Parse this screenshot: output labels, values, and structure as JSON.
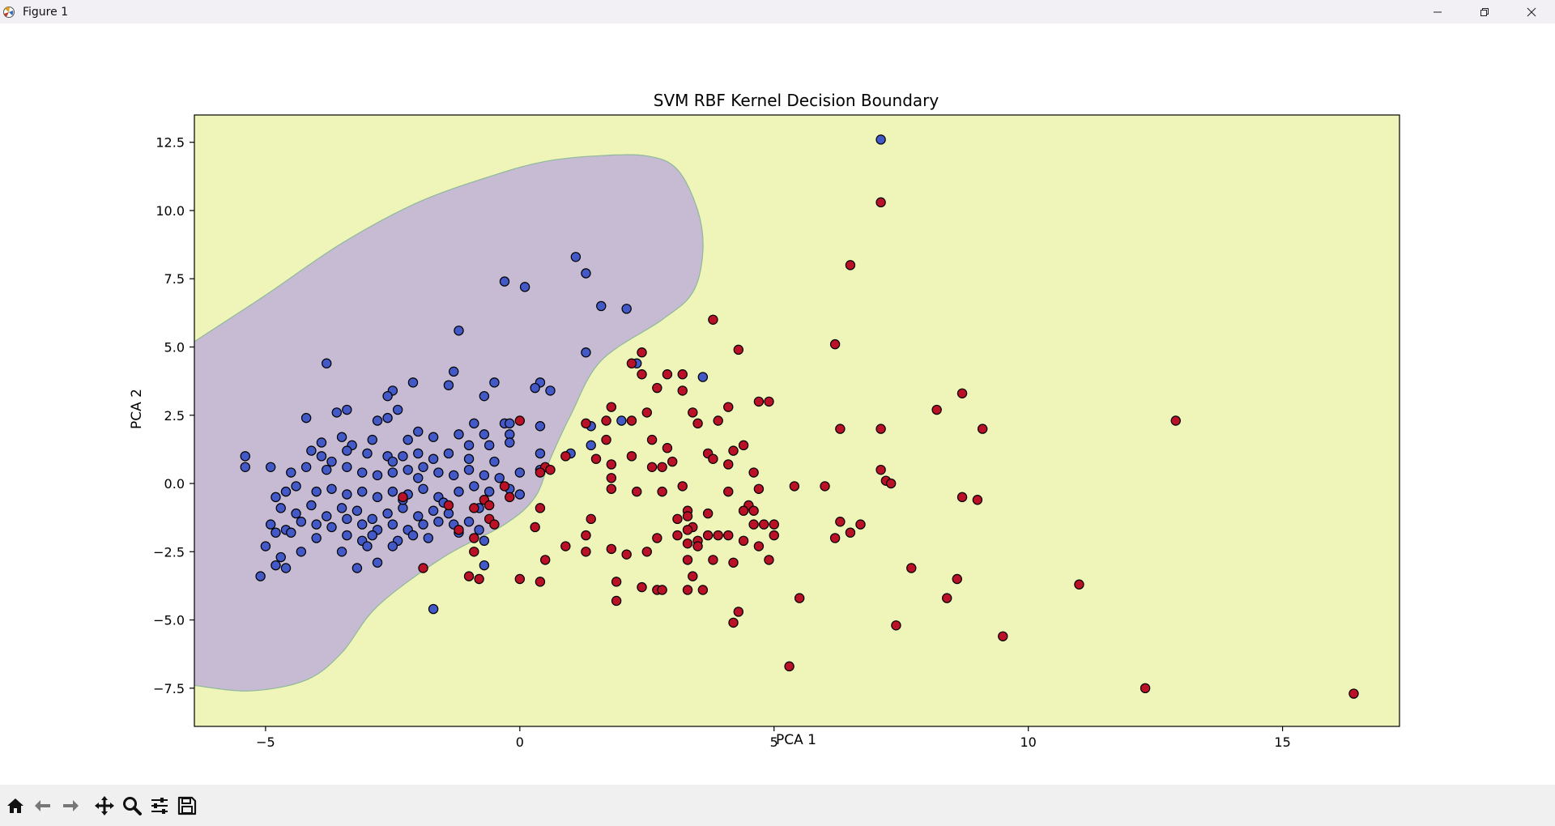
{
  "window": {
    "title": "Figure 1",
    "controls": [
      "minimize-icon",
      "restore-icon",
      "close-icon"
    ]
  },
  "toolbar": {
    "tools": [
      "home-icon",
      "back-arrow-icon",
      "forward-arrow-icon",
      "pan-move-icon",
      "zoom-magnifier-icon",
      "configure-subplots-icon",
      "save-floppy-icon"
    ]
  },
  "colors": {
    "region_class0": "#c6bbd3",
    "region_class1": "#eff5b8",
    "boundary": "#8fb89a",
    "class0": "#4459c8",
    "class1": "#bb1127"
  },
  "chart_data": {
    "type": "scatter",
    "title": "SVM RBF Kernel Decision Boundary",
    "xlabel": "PCA 1",
    "ylabel": "PCA 2",
    "xlim": [
      -6.4,
      17.3
    ],
    "ylim": [
      -8.9,
      13.5
    ],
    "xticks": [
      -5,
      0,
      5,
      10,
      15
    ],
    "yticks": [
      -7.5,
      -5.0,
      -2.5,
      0.0,
      2.5,
      5.0,
      7.5,
      10.0,
      12.5
    ],
    "grid": false,
    "legend": "none",
    "decision_region_class0_boundary": [
      [
        -6.4,
        5.2
      ],
      [
        -5.0,
        6.9
      ],
      [
        -3.5,
        8.8
      ],
      [
        -2.0,
        10.3
      ],
      [
        -0.5,
        11.3
      ],
      [
        0.5,
        11.8
      ],
      [
        1.5,
        12.0
      ],
      [
        2.5,
        12.0
      ],
      [
        3.1,
        11.5
      ],
      [
        3.5,
        10.0
      ],
      [
        3.6,
        8.5
      ],
      [
        3.4,
        7.0
      ],
      [
        2.8,
        6.0
      ],
      [
        1.6,
        4.5
      ],
      [
        1.0,
        2.5
      ],
      [
        0.6,
        0.9
      ],
      [
        0.3,
        -0.5
      ],
      [
        -0.3,
        -1.5
      ],
      [
        -1.5,
        -2.7
      ],
      [
        -2.8,
        -4.5
      ],
      [
        -3.5,
        -6.2
      ],
      [
        -4.2,
        -7.2
      ],
      [
        -5.3,
        -7.6
      ],
      [
        -6.4,
        -7.4
      ]
    ],
    "series": [
      {
        "class": 0,
        "points": [
          [
            7.1,
            12.6
          ],
          [
            1.1,
            8.3
          ],
          [
            1.3,
            7.7
          ],
          [
            -0.3,
            7.4
          ],
          [
            0.1,
            7.2
          ],
          [
            1.6,
            6.5
          ],
          [
            2.1,
            6.4
          ],
          [
            -1.2,
            5.6
          ],
          [
            1.3,
            4.8
          ],
          [
            -3.8,
            4.4
          ],
          [
            2.3,
            4.4
          ],
          [
            3.6,
            3.9
          ],
          [
            -1.3,
            4.1
          ],
          [
            -2.1,
            3.7
          ],
          [
            -1.4,
            3.6
          ],
          [
            -0.5,
            3.7
          ],
          [
            0.4,
            3.7
          ],
          [
            0.3,
            3.5
          ],
          [
            0.6,
            3.4
          ],
          [
            -2.5,
            3.4
          ],
          [
            -2.6,
            3.2
          ],
          [
            -0.7,
            3.2
          ],
          [
            -3.4,
            2.7
          ],
          [
            -3.6,
            2.6
          ],
          [
            -2.4,
            2.7
          ],
          [
            -4.2,
            2.4
          ],
          [
            -2.8,
            2.3
          ],
          [
            -2.6,
            2.4
          ],
          [
            -0.9,
            2.2
          ],
          [
            -0.3,
            2.2
          ],
          [
            -0.2,
            2.2
          ],
          [
            0.4,
            2.1
          ],
          [
            1.4,
            2.1
          ],
          [
            2.0,
            2.3
          ],
          [
            -0.2,
            1.8
          ],
          [
            -0.7,
            1.8
          ],
          [
            -1.2,
            1.8
          ],
          [
            -1.7,
            1.7
          ],
          [
            -2.0,
            1.9
          ],
          [
            -2.2,
            1.6
          ],
          [
            -2.9,
            1.6
          ],
          [
            -3.3,
            1.4
          ],
          [
            -3.5,
            1.7
          ],
          [
            -3.9,
            1.5
          ],
          [
            -4.1,
            1.2
          ],
          [
            -3.9,
            1.0
          ],
          [
            -3.7,
            0.8
          ],
          [
            -3.4,
            1.2
          ],
          [
            -3.0,
            1.1
          ],
          [
            -2.6,
            1.0
          ],
          [
            -2.3,
            1.0
          ],
          [
            -2.0,
            1.1
          ],
          [
            -1.7,
            0.9
          ],
          [
            -1.4,
            1.1
          ],
          [
            -1.0,
            1.4
          ],
          [
            -0.6,
            1.4
          ],
          [
            -0.2,
            1.5
          ],
          [
            0.4,
            1.1
          ],
          [
            1.0,
            1.1
          ],
          [
            1.4,
            1.4
          ],
          [
            -5.4,
            1.0
          ],
          [
            -5.4,
            0.6
          ],
          [
            -4.9,
            0.6
          ],
          [
            -4.5,
            0.4
          ],
          [
            -4.2,
            0.6
          ],
          [
            -3.8,
            0.5
          ],
          [
            -3.4,
            0.6
          ],
          [
            -3.1,
            0.4
          ],
          [
            -2.8,
            0.3
          ],
          [
            -2.5,
            0.4
          ],
          [
            -2.2,
            0.5
          ],
          [
            -1.9,
            0.6
          ],
          [
            -1.6,
            0.4
          ],
          [
            -1.3,
            0.3
          ],
          [
            -1.0,
            0.5
          ],
          [
            -0.7,
            0.3
          ],
          [
            -0.4,
            0.2
          ],
          [
            0.0,
            0.4
          ],
          [
            0.4,
            0.5
          ],
          [
            -4.8,
            -0.5
          ],
          [
            -4.6,
            -0.3
          ],
          [
            -4.4,
            -0.1
          ],
          [
            -4.0,
            -0.3
          ],
          [
            -3.7,
            -0.2
          ],
          [
            -3.4,
            -0.4
          ],
          [
            -3.1,
            -0.3
          ],
          [
            -2.8,
            -0.5
          ],
          [
            -2.5,
            -0.3
          ],
          [
            -2.2,
            -0.4
          ],
          [
            -1.9,
            -0.2
          ],
          [
            -1.6,
            -0.5
          ],
          [
            -1.2,
            -0.3
          ],
          [
            -0.9,
            -0.1
          ],
          [
            -0.6,
            -0.3
          ],
          [
            -0.2,
            -0.2
          ],
          [
            0.0,
            -0.4
          ],
          [
            -4.7,
            -0.9
          ],
          [
            -4.4,
            -1.1
          ],
          [
            -4.1,
            -0.8
          ],
          [
            -3.8,
            -1.2
          ],
          [
            -3.5,
            -0.9
          ],
          [
            -3.2,
            -1.0
          ],
          [
            -2.9,
            -1.3
          ],
          [
            -2.6,
            -1.1
          ],
          [
            -2.3,
            -0.9
          ],
          [
            -2.0,
            -1.2
          ],
          [
            -1.7,
            -1.0
          ],
          [
            -1.4,
            -1.1
          ],
          [
            -4.9,
            -1.5
          ],
          [
            -4.6,
            -1.7
          ],
          [
            -4.3,
            -1.4
          ],
          [
            -4.0,
            -1.5
          ],
          [
            -3.7,
            -1.6
          ],
          [
            -3.4,
            -1.3
          ],
          [
            -3.1,
            -1.5
          ],
          [
            -2.8,
            -1.7
          ],
          [
            -2.5,
            -1.5
          ],
          [
            -2.2,
            -1.7
          ],
          [
            -1.9,
            -1.5
          ],
          [
            -1.6,
            -1.4
          ],
          [
            -1.3,
            -1.5
          ],
          [
            -1.0,
            -1.4
          ],
          [
            -0.8,
            -1.7
          ],
          [
            -4.8,
            -1.8
          ],
          [
            -4.5,
            -1.8
          ],
          [
            -4.0,
            -2.0
          ],
          [
            -3.4,
            -1.9
          ],
          [
            -3.1,
            -2.1
          ],
          [
            -2.9,
            -1.9
          ],
          [
            -2.4,
            -2.1
          ],
          [
            -2.1,
            -1.9
          ],
          [
            -1.8,
            -2.0
          ],
          [
            -1.2,
            -1.8
          ],
          [
            -0.7,
            -2.1
          ],
          [
            -5.0,
            -2.3
          ],
          [
            -4.3,
            -2.5
          ],
          [
            -3.5,
            -2.5
          ],
          [
            -3.0,
            -2.3
          ],
          [
            -2.5,
            -2.3
          ],
          [
            -4.7,
            -2.7
          ],
          [
            -4.8,
            -3.0
          ],
          [
            -4.6,
            -3.1
          ],
          [
            -5.1,
            -3.4
          ],
          [
            -3.2,
            -3.1
          ],
          [
            -2.8,
            -2.9
          ],
          [
            -0.7,
            -3.0
          ],
          [
            -1.7,
            -4.6
          ],
          [
            -2.5,
            0.8
          ],
          [
            -2.0,
            0.2
          ],
          [
            -2.3,
            -0.6
          ],
          [
            -1.0,
            0.9
          ],
          [
            -0.5,
            0.8
          ],
          [
            -0.8,
            -0.9
          ],
          [
            -1.5,
            -0.7
          ]
        ]
      },
      {
        "class": 1,
        "points": [
          [
            7.1,
            10.3
          ],
          [
            6.5,
            8.0
          ],
          [
            3.8,
            6.0
          ],
          [
            6.2,
            5.1
          ],
          [
            4.3,
            4.9
          ],
          [
            2.4,
            4.8
          ],
          [
            2.2,
            4.4
          ],
          [
            2.4,
            4.0
          ],
          [
            2.9,
            4.0
          ],
          [
            3.2,
            4.0
          ],
          [
            2.7,
            3.5
          ],
          [
            3.2,
            3.4
          ],
          [
            8.7,
            3.3
          ],
          [
            4.7,
            3.0
          ],
          [
            4.9,
            3.0
          ],
          [
            4.1,
            2.8
          ],
          [
            1.8,
            2.8
          ],
          [
            8.2,
            2.7
          ],
          [
            2.5,
            2.6
          ],
          [
            3.4,
            2.6
          ],
          [
            1.7,
            2.3
          ],
          [
            2.2,
            2.3
          ],
          [
            3.5,
            2.2
          ],
          [
            3.9,
            2.3
          ],
          [
            12.9,
            2.3
          ],
          [
            1.3,
            2.2
          ],
          [
            6.3,
            2.0
          ],
          [
            7.1,
            2.0
          ],
          [
            9.1,
            2.0
          ],
          [
            1.7,
            1.6
          ],
          [
            2.6,
            1.6
          ],
          [
            4.4,
            1.4
          ],
          [
            2.9,
            1.3
          ],
          [
            4.2,
            1.2
          ],
          [
            3.7,
            1.1
          ],
          [
            0.9,
            1.0
          ],
          [
            1.5,
            0.9
          ],
          [
            2.2,
            1.0
          ],
          [
            3.8,
            0.9
          ],
          [
            2.6,
            0.6
          ],
          [
            2.8,
            0.6
          ],
          [
            3.0,
            0.8
          ],
          [
            4.1,
            0.7
          ],
          [
            1.8,
            0.7
          ],
          [
            7.1,
            0.5
          ],
          [
            0.5,
            0.6
          ],
          [
            0.4,
            0.4
          ],
          [
            4.6,
            0.4
          ],
          [
            1.8,
            0.2
          ],
          [
            7.2,
            0.1
          ],
          [
            7.3,
            0.0
          ],
          [
            3.2,
            -0.1
          ],
          [
            6.0,
            -0.1
          ],
          [
            5.4,
            -0.1
          ],
          [
            -0.3,
            -0.1
          ],
          [
            -0.2,
            -0.5
          ],
          [
            1.8,
            -0.2
          ],
          [
            2.3,
            -0.3
          ],
          [
            2.8,
            -0.3
          ],
          [
            4.1,
            -0.3
          ],
          [
            4.7,
            -0.2
          ],
          [
            8.7,
            -0.5
          ],
          [
            9.0,
            -0.6
          ],
          [
            -1.4,
            -0.8
          ],
          [
            -0.7,
            -0.6
          ],
          [
            -0.6,
            -0.8
          ],
          [
            -2.3,
            -0.5
          ],
          [
            3.3,
            -1.0
          ],
          [
            3.7,
            -1.1
          ],
          [
            4.5,
            -0.8
          ],
          [
            4.6,
            -1.0
          ],
          [
            4.4,
            -1.0
          ],
          [
            0.4,
            -0.9
          ],
          [
            3.3,
            -1.2
          ],
          [
            3.1,
            -1.3
          ],
          [
            1.4,
            -1.3
          ],
          [
            5.0,
            -1.5
          ],
          [
            6.3,
            -1.4
          ],
          [
            6.7,
            -1.5
          ],
          [
            4.6,
            -1.5
          ],
          [
            4.8,
            -1.5
          ],
          [
            -0.6,
            -1.3
          ],
          [
            -0.5,
            -1.5
          ],
          [
            3.4,
            -1.6
          ],
          [
            3.3,
            -1.7
          ],
          [
            3.7,
            -1.9
          ],
          [
            3.9,
            -1.9
          ],
          [
            4.1,
            -1.9
          ],
          [
            5.0,
            -1.9
          ],
          [
            2.7,
            -2.0
          ],
          [
            3.1,
            -1.9
          ],
          [
            3.5,
            -2.1
          ],
          [
            6.5,
            -1.8
          ],
          [
            6.2,
            -2.0
          ],
          [
            1.3,
            -1.9
          ],
          [
            -0.9,
            -2.0
          ],
          [
            -1.2,
            -1.7
          ],
          [
            0.3,
            -1.6
          ],
          [
            3.3,
            -2.2
          ],
          [
            3.5,
            -2.3
          ],
          [
            4.7,
            -2.3
          ],
          [
            0.9,
            -2.3
          ],
          [
            1.8,
            -2.4
          ],
          [
            2.1,
            -2.6
          ],
          [
            2.5,
            -2.5
          ],
          [
            4.4,
            -2.1
          ],
          [
            1.3,
            -2.5
          ],
          [
            0.5,
            -2.8
          ],
          [
            3.3,
            -2.8
          ],
          [
            3.8,
            -2.8
          ],
          [
            4.2,
            -2.9
          ],
          [
            4.9,
            -2.8
          ],
          [
            -0.9,
            -2.5
          ],
          [
            -1.9,
            -3.1
          ],
          [
            -1.0,
            -3.4
          ],
          [
            -0.8,
            -3.5
          ],
          [
            0.0,
            -3.5
          ],
          [
            0.4,
            -3.6
          ],
          [
            1.9,
            -3.6
          ],
          [
            2.4,
            -3.8
          ],
          [
            2.7,
            -3.9
          ],
          [
            2.8,
            -3.9
          ],
          [
            3.3,
            -3.9
          ],
          [
            3.6,
            -3.9
          ],
          [
            3.4,
            -3.4
          ],
          [
            7.7,
            -3.1
          ],
          [
            8.6,
            -3.5
          ],
          [
            11.0,
            -3.7
          ],
          [
            5.5,
            -4.2
          ],
          [
            8.4,
            -4.2
          ],
          [
            1.9,
            -4.3
          ],
          [
            4.3,
            -4.7
          ],
          [
            4.2,
            -5.1
          ],
          [
            7.4,
            -5.2
          ],
          [
            9.5,
            -5.6
          ],
          [
            5.3,
            -6.7
          ],
          [
            12.3,
            -7.5
          ],
          [
            16.4,
            -7.7
          ],
          [
            -0.9,
            -0.9
          ],
          [
            0.0,
            2.3
          ],
          [
            0.6,
            0.5
          ]
        ]
      }
    ]
  }
}
